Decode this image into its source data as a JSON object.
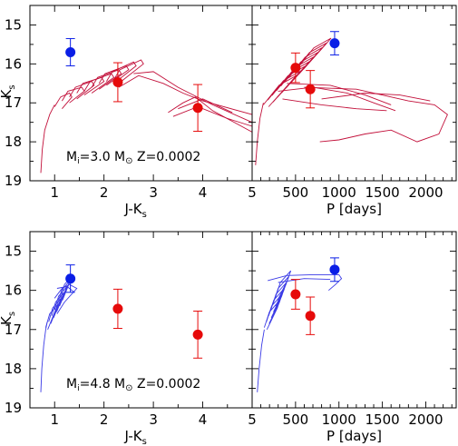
{
  "chart_data": [
    {
      "type": "scatter",
      "panel": "top-left",
      "xlabel": "J-K",
      "xlabel_sub": "s",
      "ylabel": "K",
      "ylabel_sub": "s",
      "xlim": [
        0.5,
        5.0
      ],
      "ylim": [
        19.0,
        14.5
      ],
      "x_ticks": [
        1,
        2,
        3,
        4,
        5
      ],
      "y_ticks": [
        15,
        16,
        17,
        18,
        19
      ],
      "y_inverted": true,
      "annotation": {
        "m": "M",
        "m_sub": "i",
        "mass": "=3.0 M",
        "sun": "⊙",
        "z": " Z=0.0002"
      },
      "points": [
        {
          "x": 1.32,
          "y": 15.7,
          "err": 0.35,
          "color": "#0a1ee6"
        },
        {
          "x": 2.28,
          "y": 16.47,
          "err": 0.5,
          "color": "#e60a0a"
        },
        {
          "x": 3.9,
          "y": 17.13,
          "err": 0.6,
          "color": "#e60a0a"
        }
      ],
      "track_color": "#c2103a"
    },
    {
      "type": "scatter",
      "panel": "top-right",
      "xlabel": "P [days]",
      "xlim": [
        0,
        2350
      ],
      "ylim": [
        19.0,
        14.5
      ],
      "x_ticks": [
        500,
        1000,
        1500,
        2000
      ],
      "y_inverted": true,
      "points": [
        {
          "x": 950,
          "y": 15.47,
          "err": 0.3,
          "color": "#0a1ee6"
        },
        {
          "x": 500,
          "y": 16.1,
          "err": 0.38,
          "color": "#e60a0a"
        },
        {
          "x": 670,
          "y": 16.65,
          "err": 0.48,
          "color": "#e60a0a"
        }
      ],
      "track_color": "#c2103a"
    },
    {
      "type": "scatter",
      "panel": "bottom-left",
      "xlabel": "J-K",
      "xlabel_sub": "s",
      "ylabel": "K",
      "ylabel_sub": "s",
      "xlim": [
        0.5,
        5.0
      ],
      "ylim": [
        19.0,
        14.5
      ],
      "x_ticks": [
        1,
        2,
        3,
        4,
        5
      ],
      "y_ticks": [
        15,
        16,
        17,
        18,
        19
      ],
      "y_inverted": true,
      "annotation": {
        "m": "M",
        "m_sub": "i",
        "mass": "=4.8 M",
        "sun": "⊙",
        "z": " Z=0.0002"
      },
      "points": [
        {
          "x": 1.32,
          "y": 15.7,
          "err": 0.35,
          "color": "#0a1ee6"
        },
        {
          "x": 2.28,
          "y": 16.47,
          "err": 0.5,
          "color": "#e60a0a"
        },
        {
          "x": 3.9,
          "y": 17.13,
          "err": 0.6,
          "color": "#e60a0a"
        }
      ],
      "track_color": "#3a3ae6"
    },
    {
      "type": "scatter",
      "panel": "bottom-right",
      "xlabel": "P [days]",
      "xlim": [
        0,
        2350
      ],
      "ylim": [
        19.0,
        14.5
      ],
      "x_ticks": [
        500,
        1000,
        1500,
        2000
      ],
      "y_inverted": true,
      "points": [
        {
          "x": 950,
          "y": 15.47,
          "err": 0.3,
          "color": "#0a1ee6"
        },
        {
          "x": 500,
          "y": 16.1,
          "err": 0.38,
          "color": "#e60a0a"
        },
        {
          "x": 670,
          "y": 16.65,
          "err": 0.48,
          "color": "#e60a0a"
        }
      ],
      "track_color": "#3a3ae6"
    }
  ]
}
